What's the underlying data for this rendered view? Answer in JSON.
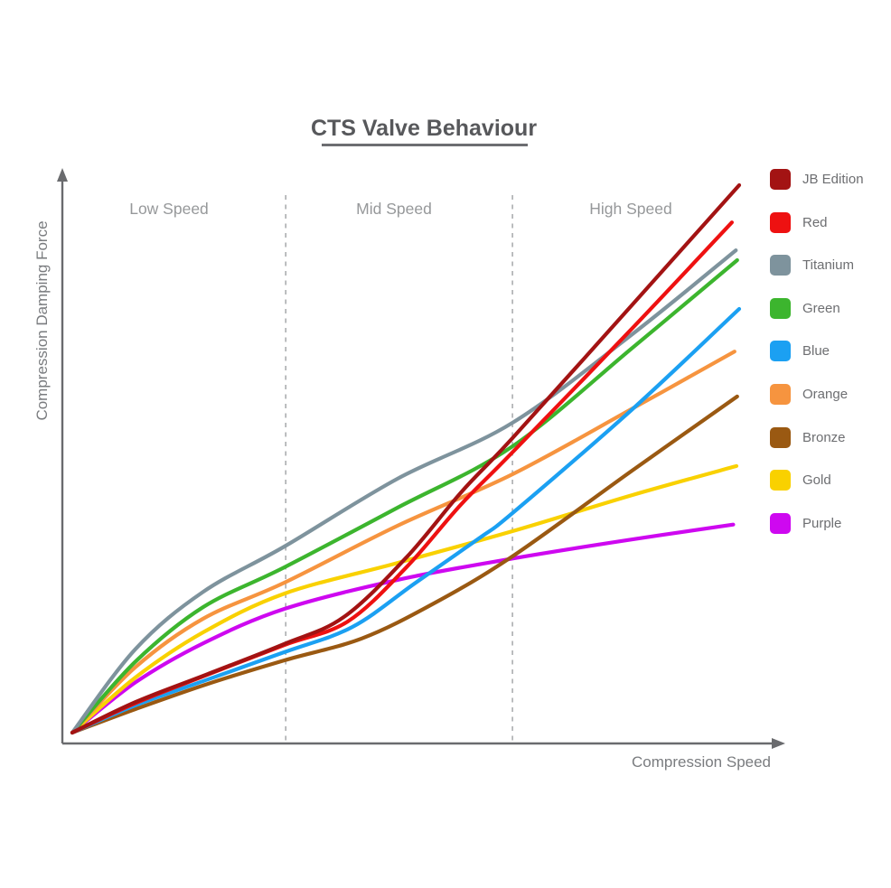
{
  "chart_data": {
    "type": "line",
    "title": "CTS Valve Behaviour",
    "xlabel": "Compression Speed",
    "ylabel": "Compression Damping Force",
    "x_range": [
      0,
      100
    ],
    "y_range": [
      0,
      100
    ],
    "grid": false,
    "axis_ticks": "none",
    "axis_arrows": true,
    "legend_position": "right",
    "regions": [
      {
        "label": "Low Speed",
        "center_x": 14.5
      },
      {
        "label": "Mid Speed",
        "center_x": 48.2
      },
      {
        "label": "High Speed",
        "center_x": 83.7
      }
    ],
    "region_dividers_x": [
      32.0,
      66.0
    ],
    "series": [
      {
        "name": "JB Edition",
        "color": "#A31313",
        "points": [
          [
            0,
            0
          ],
          [
            9.5,
            5.6
          ],
          [
            20.3,
            10.7
          ],
          [
            31.8,
            16.2
          ],
          [
            40.7,
            21.1
          ],
          [
            50.1,
            32.0
          ],
          [
            58.3,
            43.9
          ],
          [
            66.0,
            53.8
          ],
          [
            84.0,
            78.2
          ],
          [
            100,
            100
          ]
        ]
      },
      {
        "name": "Red",
        "color": "#EE1111",
        "points": [
          [
            0,
            0
          ],
          [
            9.5,
            5.4
          ],
          [
            20.3,
            10.6
          ],
          [
            31.8,
            16.0
          ],
          [
            41.3,
            20.3
          ],
          [
            50.1,
            30.2
          ],
          [
            58.3,
            41.7
          ],
          [
            66.0,
            51.2
          ],
          [
            84.0,
            73.9
          ],
          [
            98.9,
            93.2
          ]
        ]
      },
      {
        "name": "Titanium",
        "color": "#7E939D",
        "points": [
          [
            0,
            0
          ],
          [
            9.5,
            15.3
          ],
          [
            19.6,
            25.7
          ],
          [
            31.8,
            34.0
          ],
          [
            48.8,
            46.4
          ],
          [
            66.0,
            56.6
          ],
          [
            84.0,
            72.8
          ],
          [
            99.5,
            88.1
          ]
        ]
      },
      {
        "name": "Green",
        "color": "#3CB52E",
        "points": [
          [
            0,
            0
          ],
          [
            9.5,
            13.0
          ],
          [
            19.6,
            22.9
          ],
          [
            31.8,
            30.2
          ],
          [
            48.8,
            41.1
          ],
          [
            66.0,
            52.3
          ],
          [
            84.0,
            70.3
          ],
          [
            99.7,
            86.3
          ]
        ]
      },
      {
        "name": "Blue",
        "color": "#1BA0F2",
        "points": [
          [
            0,
            0
          ],
          [
            9.5,
            5.0
          ],
          [
            20.3,
            9.7
          ],
          [
            31.8,
            14.7
          ],
          [
            42.0,
            19.3
          ],
          [
            51.5,
            27.4
          ],
          [
            61.0,
            35.5
          ],
          [
            66.0,
            40.1
          ],
          [
            84.0,
            59.1
          ],
          [
            100,
            77.4
          ]
        ]
      },
      {
        "name": "Orange",
        "color": "#F6943F",
        "points": [
          [
            0,
            0
          ],
          [
            9.5,
            12.0
          ],
          [
            19.6,
            20.8
          ],
          [
            31.8,
            27.4
          ],
          [
            48.8,
            37.8
          ],
          [
            66.0,
            47.2
          ],
          [
            84.0,
            59.2
          ],
          [
            99.3,
            69.6
          ]
        ]
      },
      {
        "name": "Bronze",
        "color": "#9A5912",
        "points": [
          [
            0,
            0
          ],
          [
            9.5,
            4.3
          ],
          [
            20.3,
            8.9
          ],
          [
            31.8,
            13.2
          ],
          [
            43.4,
            17.2
          ],
          [
            54.2,
            23.6
          ],
          [
            66.0,
            32.2
          ],
          [
            84.0,
            47.9
          ],
          [
            99.7,
            61.4
          ]
        ]
      },
      {
        "name": "Gold",
        "color": "#F9D100",
        "points": [
          [
            0,
            0
          ],
          [
            9.5,
            10.1
          ],
          [
            19.6,
            18.3
          ],
          [
            31.8,
            25.4
          ],
          [
            48.8,
            31.0
          ],
          [
            66.0,
            36.8
          ],
          [
            84.0,
            43.4
          ],
          [
            99.6,
            48.7
          ]
        ]
      },
      {
        "name": "Purple",
        "color": "#CE08F0",
        "points": [
          [
            0,
            0
          ],
          [
            9.5,
            9.2
          ],
          [
            19.6,
            16.3
          ],
          [
            31.8,
            22.6
          ],
          [
            48.8,
            27.9
          ],
          [
            66.0,
            31.8
          ],
          [
            84.0,
            35.3
          ],
          [
            99.1,
            38.0
          ]
        ]
      }
    ],
    "colors": {
      "title": "#57585B",
      "axis": "#6A6B6E",
      "region_label": "#96989A",
      "divider": "#ABADAF",
      "legend_label": "#6D6E71"
    }
  }
}
